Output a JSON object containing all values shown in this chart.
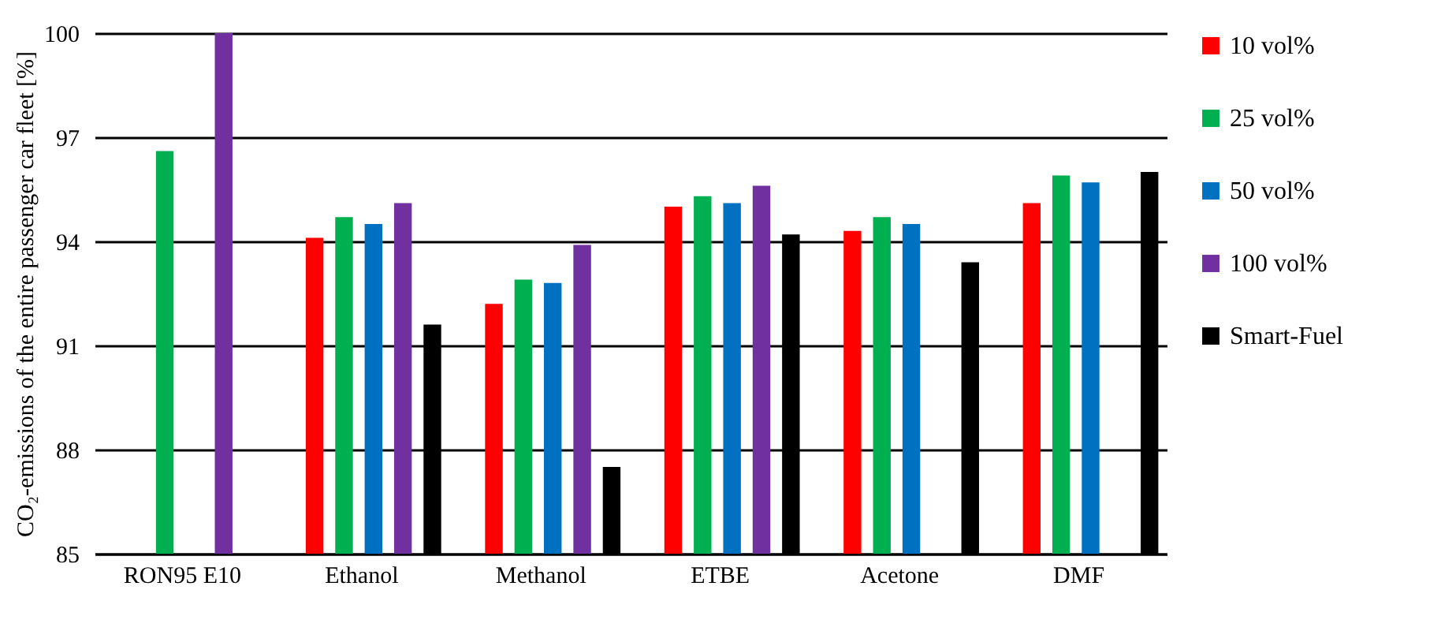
{
  "chart_data": {
    "type": "bar",
    "ylabel": "CO₂-emissions of the entire passenger car fleet [%]",
    "categories": [
      "RON95 E10",
      "Ethanol",
      "Methanol",
      "ETBE",
      "Acetone",
      "DMF"
    ],
    "series": [
      {
        "name": "10 vol%",
        "color": "#ff0000",
        "values": [
          null,
          94.1,
          92.2,
          95.0,
          94.3,
          95.1
        ]
      },
      {
        "name": "25 vol%",
        "color": "#00b050",
        "values": [
          96.6,
          94.7,
          92.9,
          95.3,
          94.7,
          95.9
        ]
      },
      {
        "name": "50 vol%",
        "color": "#0070c0",
        "values": [
          null,
          94.5,
          92.8,
          95.1,
          94.5,
          95.7
        ]
      },
      {
        "name": "100 vol%",
        "color": "#7030a0",
        "values": [
          100,
          95.1,
          93.9,
          95.6,
          null,
          null
        ]
      },
      {
        "name": "Smart-Fuel",
        "color": "#000000",
        "values": [
          null,
          91.6,
          87.5,
          94.2,
          93.4,
          96.0
        ]
      }
    ],
    "ylim": [
      85,
      100
    ],
    "yticks": [
      85,
      88,
      91,
      94,
      97,
      100
    ],
    "grid": "y",
    "legend": "right"
  }
}
